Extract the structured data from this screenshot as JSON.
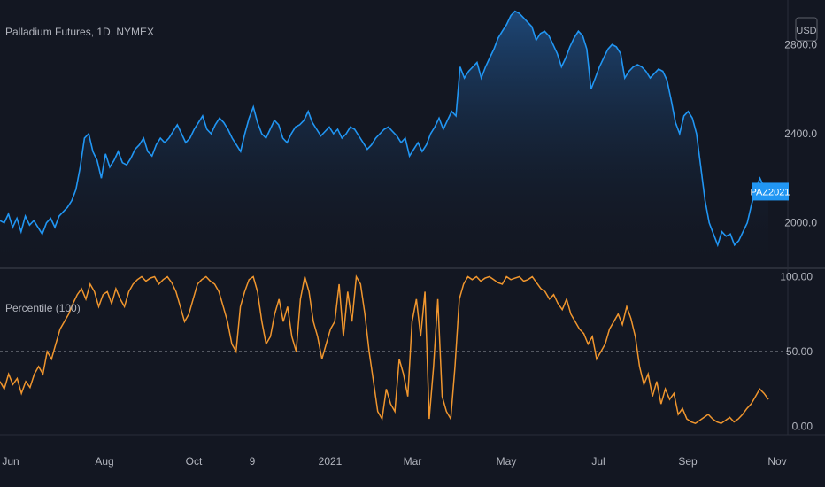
{
  "header": {
    "symbol_title": "Palladium Futures, 1D, NYMEX",
    "currency_button": "USD"
  },
  "indicator": {
    "title": "Percentile (100)"
  },
  "colors": {
    "background": "#131722",
    "price_line": "#2196f3",
    "percentile_line": "#f0962e",
    "badge": "#2196f3",
    "divider": "#2a2e39",
    "midline": "#9598a1"
  },
  "chart_data": [
    {
      "type": "area",
      "series": [
        {
          "name": "PAZ2021",
          "values": [
            2010,
            2000,
            2040,
            1980,
            2020,
            1960,
            2030,
            1990,
            2010,
            1980,
            1950,
            2000,
            2020,
            1980,
            2030,
            2050,
            2070,
            2100,
            2150,
            2250,
            2380,
            2400,
            2320,
            2280,
            2200,
            2310,
            2250,
            2280,
            2320,
            2270,
            2260,
            2290,
            2330,
            2350,
            2380,
            2320,
            2300,
            2350,
            2380,
            2360,
            2380,
            2410,
            2440,
            2400,
            2360,
            2380,
            2420,
            2450,
            2480,
            2420,
            2400,
            2440,
            2470,
            2450,
            2420,
            2380,
            2350,
            2320,
            2400,
            2470,
            2520,
            2450,
            2400,
            2380,
            2420,
            2460,
            2440,
            2380,
            2360,
            2400,
            2430,
            2440,
            2460,
            2500,
            2450,
            2420,
            2390,
            2410,
            2430,
            2400,
            2420,
            2380,
            2400,
            2430,
            2420,
            2390,
            2360,
            2330,
            2350,
            2380,
            2400,
            2420,
            2430,
            2410,
            2390,
            2360,
            2380,
            2300,
            2330,
            2360,
            2320,
            2350,
            2400,
            2430,
            2470,
            2420,
            2460,
            2500,
            2480,
            2700,
            2650,
            2680,
            2700,
            2720,
            2650,
            2700,
            2740,
            2780,
            2830,
            2860,
            2890,
            2930,
            2950,
            2940,
            2920,
            2900,
            2880,
            2820,
            2850,
            2860,
            2840,
            2800,
            2760,
            2700,
            2740,
            2790,
            2830,
            2860,
            2840,
            2780,
            2600,
            2650,
            2700,
            2740,
            2780,
            2800,
            2790,
            2760,
            2650,
            2680,
            2700,
            2710,
            2700,
            2680,
            2650,
            2670,
            2690,
            2680,
            2640,
            2550,
            2450,
            2400,
            2480,
            2500,
            2470,
            2400,
            2250,
            2100,
            2000,
            1950,
            1900,
            1960,
            1940,
            1950,
            1900,
            1920,
            1960,
            2000,
            2080,
            2150,
            2200,
            2160,
            2130
          ],
          "last_value": 2140,
          "label": "PAZ2021"
        }
      ],
      "ylim": [
        1800,
        3000
      ],
      "y_ticks": [
        2000,
        2400,
        2800
      ],
      "y_tick_labels": [
        "2000.0",
        "2400.0",
        "2800.0"
      ],
      "x_tick_labels": [
        "Jun",
        "Aug",
        "Oct",
        "9",
        "2021",
        "Mar",
        "May",
        "Jul",
        "Sep",
        "Nov"
      ],
      "grid": false
    },
    {
      "type": "line",
      "series": [
        {
          "name": "Percentile (100)",
          "values": [
            30,
            25,
            35,
            28,
            32,
            22,
            30,
            26,
            35,
            40,
            35,
            50,
            45,
            55,
            65,
            70,
            75,
            82,
            88,
            92,
            85,
            95,
            90,
            80,
            88,
            90,
            82,
            92,
            85,
            80,
            90,
            95,
            98,
            100,
            97,
            99,
            100,
            95,
            98,
            100,
            96,
            90,
            80,
            70,
            75,
            85,
            95,
            98,
            100,
            97,
            95,
            90,
            80,
            70,
            55,
            50,
            80,
            90,
            98,
            100,
            90,
            70,
            55,
            60,
            75,
            85,
            70,
            80,
            60,
            50,
            85,
            100,
            90,
            70,
            60,
            45,
            55,
            65,
            70,
            95,
            60,
            90,
            70,
            100,
            95,
            75,
            50,
            30,
            10,
            5,
            25,
            15,
            10,
            45,
            35,
            20,
            70,
            85,
            60,
            90,
            5,
            40,
            85,
            20,
            10,
            5,
            40,
            85,
            95,
            100,
            98,
            100,
            97,
            99,
            100,
            98,
            96,
            95,
            100,
            98,
            99,
            100,
            97,
            98,
            100,
            96,
            92,
            90,
            85,
            88,
            82,
            78,
            85,
            75,
            70,
            65,
            62,
            55,
            60,
            45,
            50,
            55,
            65,
            70,
            75,
            68,
            80,
            72,
            60,
            40,
            28,
            35,
            20,
            30,
            15,
            25,
            18,
            22,
            8,
            12,
            5,
            3,
            2,
            4,
            6,
            8,
            5,
            3,
            2,
            4,
            6,
            3,
            5,
            8,
            12,
            15,
            20,
            25,
            22,
            18
          ],
          "last_value": 20
        }
      ],
      "ylim": [
        -5,
        105
      ],
      "y_ticks": [
        0,
        50,
        100
      ],
      "y_tick_labels": [
        "0.00",
        "50.00",
        "100.00"
      ],
      "reference_line": 50
    }
  ]
}
